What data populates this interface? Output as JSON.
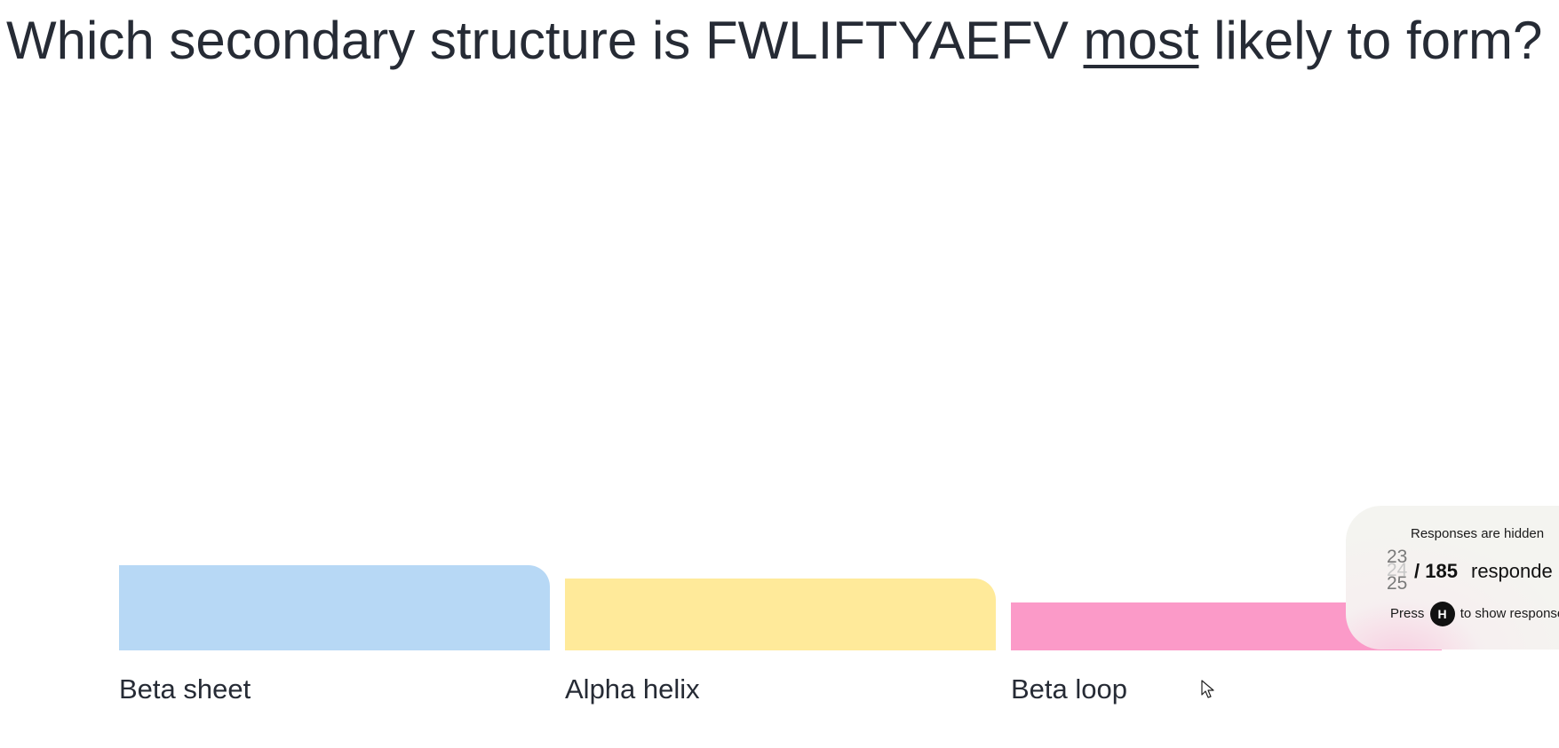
{
  "question": {
    "before": "Which secondary structure is FWLIFTYAEFV ",
    "emphasis": "most",
    "after": " likely to form?"
  },
  "colors": {
    "text": "#262b35",
    "option_1": "#b7d8f5",
    "option_2": "#ffea9a",
    "option_3": "#fb9ac8"
  },
  "chart_data": {
    "type": "bar",
    "categories": [
      "Beta sheet",
      "Alpha helix",
      "Beta loop"
    ],
    "values": [
      1.0,
      0.84,
      0.56
    ],
    "value_note": ""
  },
  "results_panel": {
    "title": "Responses are hidden",
    "count_ticker": [
      "23",
      "24",
      "25"
    ],
    "total": "/ 185",
    "total_word": "responde",
    "hint_before": "Press",
    "hint_key": "H",
    "hint_after": "to show response"
  }
}
